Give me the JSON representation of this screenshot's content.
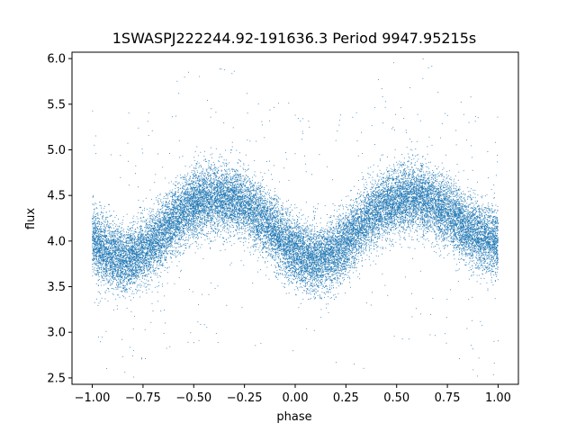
{
  "chart_data": {
    "type": "scatter",
    "title": "1SWASPJ222244.92-191636.3 Period 9947.95215s",
    "xlabel": "phase",
    "ylabel": "flux",
    "xlim": [
      -1.1,
      1.1
    ],
    "ylim": [
      2.43,
      6.07
    ],
    "x_ticks": [
      -1.0,
      -0.75,
      -0.5,
      -0.25,
      0.0,
      0.25,
      0.5,
      0.75,
      1.0
    ],
    "x_tick_labels": [
      "−1.00",
      "−0.75",
      "−0.50",
      "−0.25",
      "0.00",
      "0.25",
      "0.50",
      "0.75",
      "1.00"
    ],
    "y_ticks": [
      2.5,
      3.0,
      3.5,
      4.0,
      4.5,
      5.0,
      5.5,
      6.0
    ],
    "y_tick_labels": [
      "2.5",
      "3.0",
      "3.5",
      "4.0",
      "4.5",
      "5.0",
      "5.5",
      "6.0"
    ],
    "grid": false,
    "series": [
      {
        "color": "#1f77b4",
        "x": [
          -1.0,
          -0.95,
          -0.9,
          -0.85,
          -0.8,
          -0.75,
          -0.7,
          -0.65,
          -0.6,
          -0.55,
          -0.5,
          -0.45,
          -0.4,
          -0.35,
          -0.3,
          -0.25,
          -0.2,
          -0.15,
          -0.1,
          -0.05,
          0.0,
          0.05,
          0.1,
          0.15,
          0.2,
          0.25,
          0.3,
          0.35,
          0.4,
          0.45,
          0.5,
          0.55,
          0.6,
          0.65,
          0.7,
          0.75,
          0.8,
          0.85,
          0.9,
          0.95,
          1.0
        ],
        "y": [
          4.0,
          3.9,
          3.82,
          3.8,
          3.82,
          3.88,
          3.98,
          4.1,
          4.22,
          4.32,
          4.4,
          4.45,
          4.47,
          4.47,
          4.45,
          4.4,
          4.32,
          4.22,
          4.1,
          3.98,
          3.88,
          3.82,
          3.8,
          3.82,
          3.88,
          3.98,
          4.1,
          4.22,
          4.32,
          4.4,
          4.45,
          4.47,
          4.47,
          4.45,
          4.4,
          4.32,
          4.22,
          4.12,
          4.06,
          4.02,
          4.0
        ],
        "scatter_sd": 0.18,
        "points_per_unit_phase": 12000
      }
    ]
  }
}
